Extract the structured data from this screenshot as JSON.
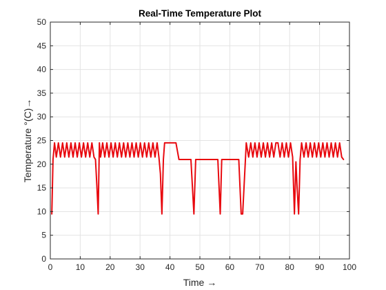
{
  "chart_data": {
    "type": "line",
    "title": "Real-Time Temperature Plot",
    "xlabel": "Time →",
    "ylabel": "Temperature °(C)→",
    "xlim": [
      0,
      100
    ],
    "ylim": [
      0,
      50
    ],
    "xticks": [
      "0",
      "10",
      "20",
      "30",
      "40",
      "50",
      "60",
      "70",
      "80",
      "90",
      "100"
    ],
    "yticks": [
      "0",
      "5",
      "10",
      "15",
      "20",
      "25",
      "30",
      "35",
      "40",
      "45",
      "50"
    ],
    "grid": true,
    "legend": "none",
    "series": [
      {
        "color": "#e8080e",
        "x": [
          0.5,
          0.9,
          1.4,
          2.0,
          2.7,
          3.4,
          4.1,
          4.8,
          5.5,
          6.2,
          6.9,
          7.6,
          8.3,
          9.0,
          9.7,
          10.4,
          11.1,
          11.8,
          12.5,
          13.2,
          13.9,
          14.6,
          15.1,
          15.6,
          16.0,
          16.4,
          16.8,
          17.5,
          18.2,
          18.9,
          19.6,
          20.3,
          21.0,
          21.7,
          22.4,
          23.1,
          23.8,
          24.5,
          25.2,
          25.9,
          26.6,
          27.3,
          28.0,
          28.7,
          29.4,
          30.1,
          30.8,
          31.5,
          32.2,
          32.9,
          33.6,
          34.3,
          35.0,
          35.7,
          36.3,
          36.8,
          37.3,
          37.8,
          38.2,
          42.0,
          43.0,
          47.0,
          48.0,
          48.6,
          49.2,
          56.0,
          56.8,
          57.3,
          57.9,
          63.0,
          63.8,
          64.3,
          65.5,
          66.3,
          67.0,
          67.7,
          68.4,
          69.1,
          69.8,
          70.5,
          71.2,
          71.9,
          72.6,
          73.3,
          74.0,
          74.7,
          75.4,
          76.1,
          76.8,
          77.5,
          78.2,
          78.9,
          79.6,
          80.3,
          81.0,
          81.6,
          82.1,
          82.5,
          83.0,
          83.5,
          84.0,
          84.8,
          85.5,
          86.2,
          86.9,
          87.6,
          88.3,
          89.0,
          89.7,
          90.4,
          91.1,
          91.8,
          92.5,
          93.2,
          93.9,
          94.6,
          95.3,
          96.0,
          96.7,
          97.4,
          98.0
        ],
        "y": [
          9.5,
          21,
          24.5,
          21.5,
          24.5,
          21.5,
          24.5,
          21.5,
          24.5,
          21.5,
          24.5,
          21.5,
          24.5,
          21.5,
          24.5,
          21.5,
          24.5,
          21.5,
          24.5,
          21.5,
          24.5,
          21.5,
          21,
          15,
          9.5,
          24.5,
          21.5,
          24.5,
          21.5,
          24.5,
          21.5,
          24.5,
          21.5,
          24.5,
          21.5,
          24.5,
          21.5,
          24.5,
          21.5,
          24.5,
          21.5,
          24.5,
          21.5,
          24.5,
          21.5,
          24.5,
          21.5,
          24.5,
          21.5,
          24.5,
          21.5,
          24.5,
          21.5,
          24.5,
          21.5,
          18,
          9.5,
          21,
          24.5,
          24.5,
          21,
          21,
          9.5,
          21,
          21,
          21,
          9.5,
          21,
          21,
          21,
          9.5,
          9.5,
          24.5,
          21.5,
          24.5,
          21.5,
          24.5,
          21.5,
          24.5,
          21.5,
          24.5,
          21.5,
          24.5,
          21.5,
          24.5,
          21.5,
          24.5,
          24.5,
          21.5,
          24.5,
          21.5,
          24.5,
          21.5,
          24.5,
          21.5,
          9.5,
          20.5,
          15,
          9.5,
          21,
          24.5,
          21.5,
          24.5,
          21.5,
          24.5,
          21.5,
          24.5,
          21.5,
          24.5,
          21.5,
          24.5,
          21.5,
          24.5,
          21.5,
          24.5,
          21.5,
          24.5,
          21.5,
          24.5,
          21.5,
          21
        ]
      }
    ]
  }
}
